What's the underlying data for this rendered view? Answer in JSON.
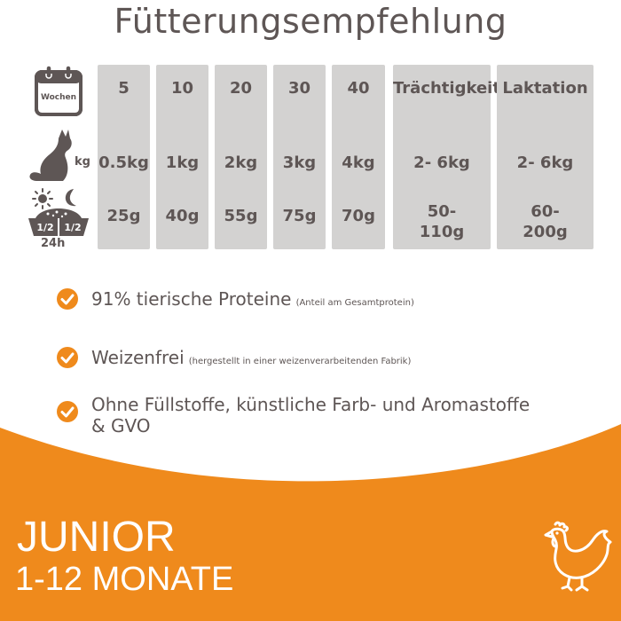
{
  "title": "Fütterungsempfehlung",
  "table": {
    "week_icon_label": "Wochen",
    "kg_label": "kg",
    "half_left": "1/2",
    "half_right": "1/2",
    "h24_label": "24h",
    "columns": [
      {
        "head": "5",
        "kg": "0.5kg",
        "food": "25g"
      },
      {
        "head": "10",
        "kg": "1kg",
        "food": "40g"
      },
      {
        "head": "20",
        "kg": "2kg",
        "food": "55g"
      },
      {
        "head": "30",
        "kg": "3kg",
        "food": "75g"
      },
      {
        "head": "40",
        "kg": "4kg",
        "food": "70g"
      },
      {
        "head": "Trächtigkeit",
        "kg": "2- 6kg",
        "food_line1": "50-",
        "food_line2": "110g"
      },
      {
        "head": "Laktation",
        "kg": "2- 6kg",
        "food_line1": "60-",
        "food_line2": "200g"
      }
    ]
  },
  "features": [
    {
      "main": "91% tierische Proteine",
      "note": "(Anteil am Gesamtprotein)"
    },
    {
      "main": "Weizenfrei",
      "note": "(hergestellt in einer weizenverarbeitenden Fabrik)"
    },
    {
      "main_line1": "Ohne Füllstoffe, künstliche Farb- und Aromastoffe",
      "main_line2": "& GVO"
    }
  ],
  "banner": {
    "line1": "JUNIOR",
    "line2": "1-12 MONATE"
  },
  "colors": {
    "accent_orange": "#ef8a1c",
    "text_gray": "#5e5655",
    "column_gray": "#d3d2d1"
  }
}
